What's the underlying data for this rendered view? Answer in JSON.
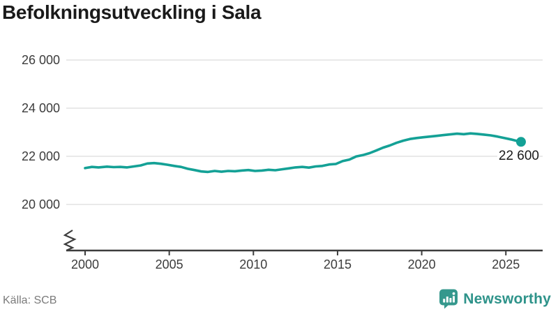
{
  "title": "Befolkningsutveckling i Sala",
  "source": "Källa: SCB",
  "brand": {
    "name": "Newsworthy"
  },
  "end_label": "22 600",
  "colors": {
    "line": "#14a196",
    "grid": "#e2e2e2",
    "axis": "#3d3d3d",
    "tick": "#3c3c3c",
    "title": "#1a1a1a",
    "source": "#7b7b7b",
    "brand": "#2e938a",
    "endpoint_label": "#1a1a1a",
    "background": "#ffffff"
  },
  "chart_data": {
    "type": "line",
    "title": "Befolkningsutveckling i Sala",
    "xlabel": "",
    "ylabel": "",
    "grid": "horizontal",
    "legend": "none",
    "y_axis_break": true,
    "xlim": [
      1998.9,
      2027.2
    ],
    "ylim": [
      19100,
      26400
    ],
    "xticks": [
      2000,
      2005,
      2010,
      2015,
      2020,
      2025
    ],
    "yticks": [
      20000,
      22000,
      24000,
      26000
    ],
    "ytick_labels": [
      "20 000",
      "22 000",
      "24 000",
      "26 000"
    ],
    "end_point": {
      "year": 2025.9,
      "value": 22600,
      "label": "22 600"
    },
    "series": [
      {
        "name": "Befolkning i Sala",
        "points": [
          [
            2000.0,
            21510
          ],
          [
            2000.4,
            21560
          ],
          [
            2000.8,
            21540
          ],
          [
            2001.3,
            21570
          ],
          [
            2001.7,
            21550
          ],
          [
            2002.1,
            21560
          ],
          [
            2002.5,
            21540
          ],
          [
            2002.9,
            21580
          ],
          [
            2003.3,
            21620
          ],
          [
            2003.7,
            21700
          ],
          [
            2004.1,
            21720
          ],
          [
            2004.5,
            21690
          ],
          [
            2004.9,
            21650
          ],
          [
            2005.3,
            21600
          ],
          [
            2005.7,
            21560
          ],
          [
            2006.1,
            21480
          ],
          [
            2006.5,
            21430
          ],
          [
            2006.9,
            21370
          ],
          [
            2007.3,
            21350
          ],
          [
            2007.7,
            21390
          ],
          [
            2008.1,
            21360
          ],
          [
            2008.5,
            21390
          ],
          [
            2008.9,
            21380
          ],
          [
            2009.3,
            21410
          ],
          [
            2009.7,
            21430
          ],
          [
            2010.1,
            21390
          ],
          [
            2010.5,
            21410
          ],
          [
            2010.9,
            21440
          ],
          [
            2011.3,
            21420
          ],
          [
            2011.7,
            21460
          ],
          [
            2012.1,
            21500
          ],
          [
            2012.5,
            21540
          ],
          [
            2012.9,
            21560
          ],
          [
            2013.3,
            21530
          ],
          [
            2013.7,
            21580
          ],
          [
            2014.1,
            21600
          ],
          [
            2014.5,
            21660
          ],
          [
            2014.9,
            21680
          ],
          [
            2015.3,
            21800
          ],
          [
            2015.7,
            21860
          ],
          [
            2016.1,
            21990
          ],
          [
            2016.5,
            22050
          ],
          [
            2016.9,
            22130
          ],
          [
            2017.3,
            22240
          ],
          [
            2017.7,
            22360
          ],
          [
            2018.1,
            22450
          ],
          [
            2018.5,
            22560
          ],
          [
            2018.9,
            22650
          ],
          [
            2019.3,
            22720
          ],
          [
            2019.7,
            22760
          ],
          [
            2020.1,
            22790
          ],
          [
            2020.5,
            22820
          ],
          [
            2020.9,
            22850
          ],
          [
            2021.3,
            22880
          ],
          [
            2021.7,
            22910
          ],
          [
            2022.1,
            22940
          ],
          [
            2022.5,
            22920
          ],
          [
            2022.9,
            22950
          ],
          [
            2023.3,
            22930
          ],
          [
            2023.7,
            22900
          ],
          [
            2024.1,
            22870
          ],
          [
            2024.5,
            22820
          ],
          [
            2024.9,
            22760
          ],
          [
            2025.3,
            22700
          ],
          [
            2025.6,
            22650
          ],
          [
            2025.9,
            22600
          ]
        ]
      }
    ]
  }
}
